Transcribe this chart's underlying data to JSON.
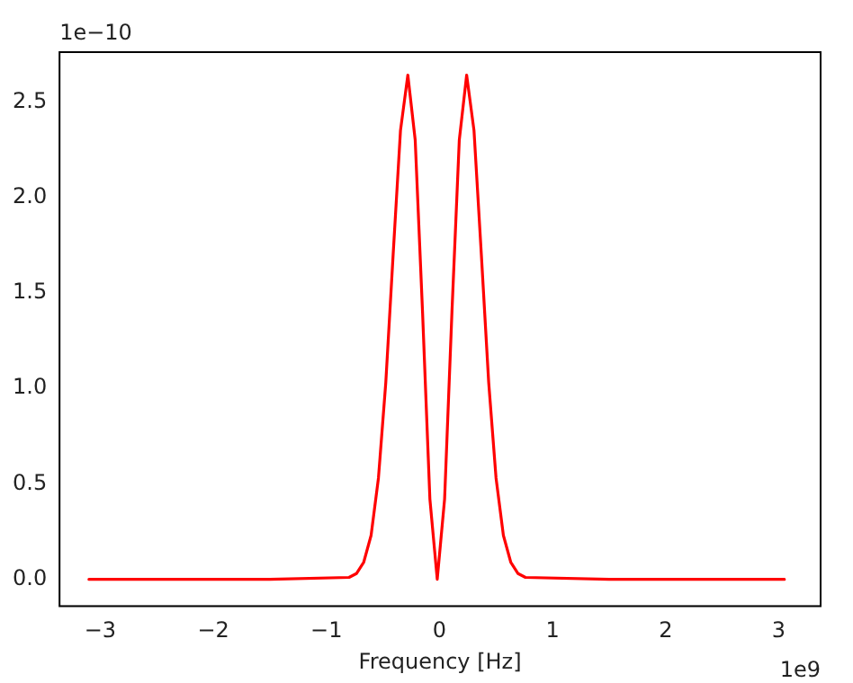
{
  "chart_data": {
    "type": "line",
    "xlabel": "Frequency [Hz]",
    "annotations": [
      "1e−10",
      "1e9"
    ],
    "x": [
      -3.1,
      -1.5,
      -0.8,
      -0.735,
      -0.67,
      -0.605,
      -0.54,
      -0.475,
      -0.41,
      -0.345,
      -0.28,
      -0.215,
      -0.15,
      -0.085,
      -0.02,
      0.045,
      0.11,
      0.175,
      0.24,
      0.305,
      0.37,
      0.435,
      0.5,
      0.565,
      0.63,
      0.695,
      0.76,
      1.5,
      3.05
    ],
    "series": [
      {
        "color": "#ff0000",
        "values": [
          0,
          0,
          0.01,
          0.03,
          0.09,
          0.23,
          0.53,
          1.03,
          1.7,
          2.35,
          2.64,
          2.3,
          1.4,
          0.42,
          0,
          0.42,
          1.4,
          2.3,
          2.64,
          2.35,
          1.7,
          1.03,
          0.53,
          0.23,
          0.09,
          0.03,
          0.01,
          0,
          0
        ]
      }
    ],
    "xlim": [
      -3.36,
      3.37
    ],
    "xticks": [
      -3,
      -2,
      -1,
      0,
      1,
      2,
      3
    ],
    "ylim": [
      -0.14,
      2.76
    ],
    "yticks": [
      {
        "value": 0,
        "label": "0.0"
      },
      {
        "value": 0.5,
        "label": "0.5"
      },
      {
        "value": 1,
        "label": "1.0"
      },
      {
        "value": 1.5,
        "label": "1.5"
      },
      {
        "value": 2,
        "label": "2.0"
      },
      {
        "value": 2.5,
        "label": "2.5"
      }
    ],
    "grid": false,
    "legend": false,
    "marker": "none",
    "line_style": "solid"
  }
}
